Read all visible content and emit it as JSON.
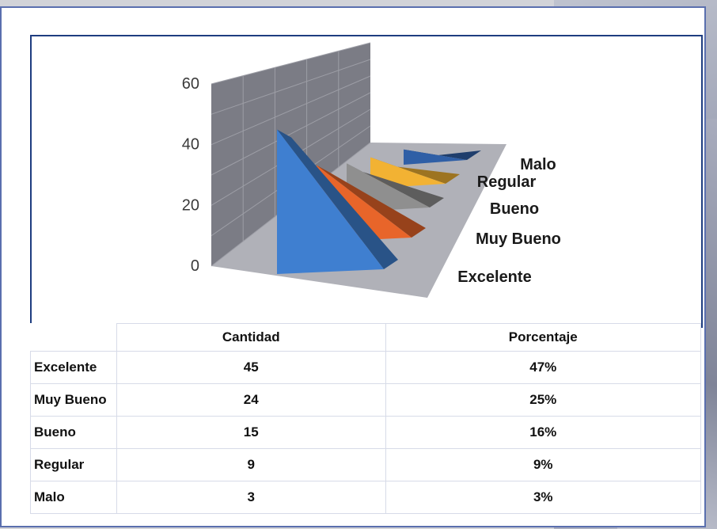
{
  "chart_data": {
    "type": "bar",
    "style": "3d-pyramid",
    "categories": [
      "Excelente",
      "Muy Bueno",
      "Bueno",
      "Regular",
      "Malo"
    ],
    "values": [
      45,
      24,
      15,
      9,
      3
    ],
    "yticks": [
      "0",
      "20",
      "40",
      "60"
    ],
    "ylim": [
      0,
      60
    ],
    "grid": true,
    "colors": [
      "#3f7fd0",
      "#e8652a",
      "#8f8f8f",
      "#f2b233",
      "#2f5fa6"
    ]
  },
  "table": {
    "headers": [
      "",
      "Cantidad",
      "Porcentaje"
    ],
    "rows": [
      {
        "label": "Excelente",
        "cantidad": "45",
        "porcentaje": "47%"
      },
      {
        "label": "Muy Bueno",
        "cantidad": "24",
        "porcentaje": "25%"
      },
      {
        "label": "Bueno",
        "cantidad": "15",
        "porcentaje": "16%"
      },
      {
        "label": "Regular",
        "cantidad": "9",
        "porcentaje": "9%"
      },
      {
        "label": "Malo",
        "cantidad": "3",
        "porcentaje": "3%"
      }
    ]
  }
}
